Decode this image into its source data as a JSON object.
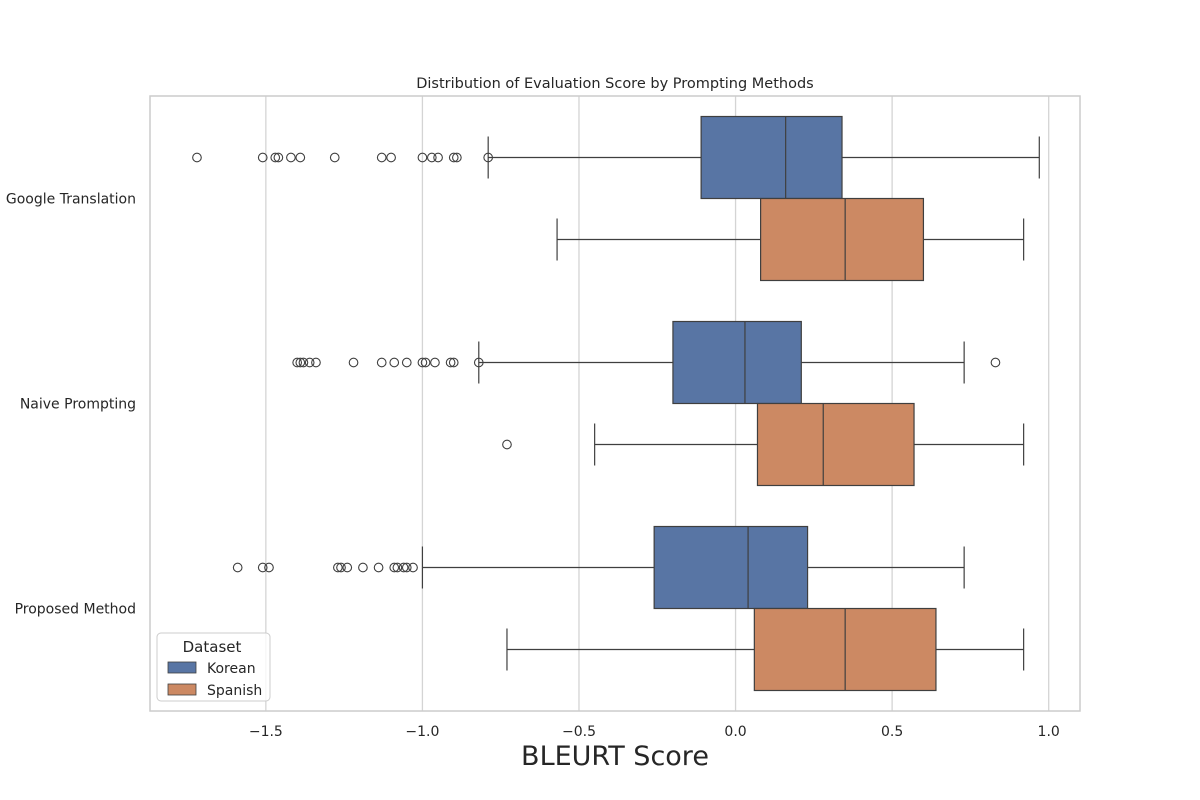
{
  "chart_data": {
    "type": "boxplot",
    "orientation": "horizontal",
    "title": "Distribution of Evaluation Score by Prompting Methods",
    "xlabel": "BLEURT Score",
    "ylabel": "",
    "xlim": [
      -1.87,
      1.1
    ],
    "xticks": [
      -1.5,
      -1.0,
      -0.5,
      0.0,
      0.5,
      1.0
    ],
    "xtick_labels": [
      "−1.5",
      "−1.0",
      "−0.5",
      "0.0",
      "0.5",
      "1.0"
    ],
    "grid": "vertical",
    "categories": [
      "Google Translation",
      "Naive Prompting",
      "Proposed Method"
    ],
    "legend": {
      "title": "Dataset",
      "placement": "lower-left",
      "entries": [
        "Korean",
        "Spanish"
      ]
    },
    "series": [
      {
        "name": "Korean",
        "color": "#5875a4",
        "boxes": [
          {
            "whisker_low": -0.79,
            "q1": -0.11,
            "median": 0.16,
            "q3": 0.34,
            "whisker_high": 0.97,
            "outliers": [
              -1.72,
              -1.51,
              -1.47,
              -1.46,
              -1.42,
              -1.39,
              -1.28,
              -1.13,
              -1.1,
              -1.0,
              -0.97,
              -0.95,
              -0.9,
              -0.89,
              -0.79
            ]
          },
          {
            "whisker_low": -0.82,
            "q1": -0.2,
            "median": 0.03,
            "q3": 0.21,
            "whisker_high": 0.73,
            "outliers": [
              -1.4,
              -1.39,
              -1.38,
              -1.36,
              -1.34,
              -1.22,
              -1.13,
              -1.09,
              -1.05,
              -1.0,
              -0.99,
              -0.96,
              -0.91,
              -0.9,
              -0.82,
              0.83
            ]
          },
          {
            "whisker_low": -1.0,
            "q1": -0.26,
            "median": 0.04,
            "q3": 0.23,
            "whisker_high": 0.73,
            "outliers": [
              -1.59,
              -1.51,
              -1.49,
              -1.27,
              -1.26,
              -1.24,
              -1.19,
              -1.14,
              -1.09,
              -1.08,
              -1.06,
              -1.05,
              -1.03
            ]
          }
        ]
      },
      {
        "name": "Spanish",
        "color": "#cc8963",
        "boxes": [
          {
            "whisker_low": -0.57,
            "q1": 0.08,
            "median": 0.35,
            "q3": 0.6,
            "whisker_high": 0.92,
            "outliers": []
          },
          {
            "whisker_low": -0.45,
            "q1": 0.07,
            "median": 0.28,
            "q3": 0.57,
            "whisker_high": 0.92,
            "outliers": [
              -0.73
            ]
          },
          {
            "whisker_low": -0.73,
            "q1": 0.06,
            "median": 0.35,
            "q3": 0.64,
            "whisker_high": 0.92,
            "outliers": []
          }
        ]
      }
    ]
  }
}
